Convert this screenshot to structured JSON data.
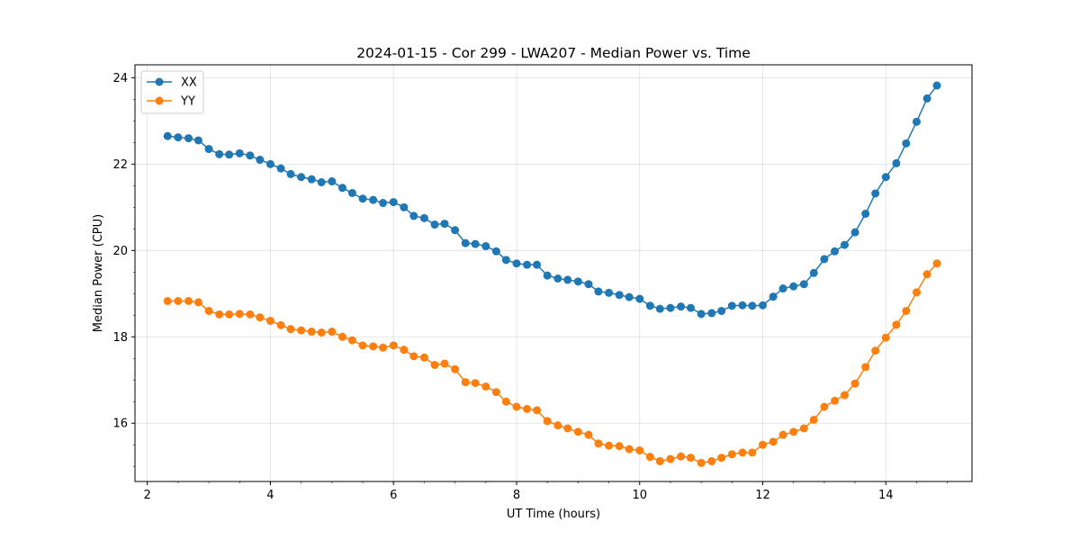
{
  "chart_data": {
    "type": "line",
    "title": "2024-01-15 - Cor 299 - LWA207 - Median Power vs. Time",
    "xlabel": "UT Time (hours)",
    "ylabel": "Median Power (CPU)",
    "xlim": [
      1.8,
      15.4
    ],
    "ylim": [
      14.65,
      24.3
    ],
    "xticks": [
      2,
      4,
      6,
      8,
      10,
      12,
      14
    ],
    "yticks": [
      16,
      18,
      20,
      22,
      24
    ],
    "grid": true,
    "legend_position": "top-left",
    "colors": {
      "XX": "#1f77b4",
      "YY": "#ff7f0e"
    },
    "series": [
      {
        "name": "XX",
        "x": [
          2.33,
          2.5,
          2.67,
          2.83,
          3.0,
          3.17,
          3.33,
          3.5,
          3.67,
          3.83,
          4.0,
          4.17,
          4.33,
          4.5,
          4.67,
          4.83,
          5.0,
          5.17,
          5.33,
          5.5,
          5.67,
          5.83,
          6.0,
          6.17,
          6.33,
          6.5,
          6.67,
          6.83,
          7.0,
          7.17,
          7.33,
          7.5,
          7.67,
          7.83,
          8.0,
          8.17,
          8.33,
          8.5,
          8.67,
          8.83,
          9.0,
          9.17,
          9.33,
          9.5,
          9.67,
          9.83,
          10.0,
          10.17,
          10.33,
          10.5,
          10.67,
          10.83,
          11.0,
          11.17,
          11.33,
          11.5,
          11.67,
          11.83,
          12.0,
          12.17,
          12.33,
          12.5,
          12.67,
          12.83,
          13.0,
          13.17,
          13.33,
          13.5,
          13.67,
          13.83,
          14.0,
          14.17,
          14.33,
          14.5,
          14.67,
          14.83
        ],
        "values": [
          22.65,
          22.62,
          22.6,
          22.55,
          22.35,
          22.23,
          22.22,
          22.25,
          22.2,
          22.1,
          22.0,
          21.9,
          21.77,
          21.7,
          21.65,
          21.58,
          21.6,
          21.45,
          21.33,
          21.2,
          21.17,
          21.1,
          21.12,
          21.0,
          20.8,
          20.75,
          20.6,
          20.62,
          20.47,
          20.17,
          20.15,
          20.1,
          19.98,
          19.78,
          19.7,
          19.67,
          19.67,
          19.42,
          19.35,
          19.32,
          19.28,
          19.22,
          19.05,
          19.02,
          18.97,
          18.92,
          18.88,
          18.72,
          18.65,
          18.67,
          18.7,
          18.67,
          18.53,
          18.55,
          18.6,
          18.72,
          18.73,
          18.72,
          18.73,
          18.93,
          19.12,
          19.17,
          19.22,
          19.48,
          19.8,
          19.98,
          20.13,
          20.42,
          20.85,
          21.32,
          21.7,
          22.02,
          22.48,
          22.98,
          23.52,
          23.82
        ]
      },
      {
        "name": "YY",
        "x": [
          2.33,
          2.5,
          2.67,
          2.83,
          3.0,
          3.17,
          3.33,
          3.5,
          3.67,
          3.83,
          4.0,
          4.17,
          4.33,
          4.5,
          4.67,
          4.83,
          5.0,
          5.17,
          5.33,
          5.5,
          5.67,
          5.83,
          6.0,
          6.17,
          6.33,
          6.5,
          6.67,
          6.83,
          7.0,
          7.17,
          7.33,
          7.5,
          7.67,
          7.83,
          8.0,
          8.17,
          8.33,
          8.5,
          8.67,
          8.83,
          9.0,
          9.17,
          9.33,
          9.5,
          9.67,
          9.83,
          10.0,
          10.17,
          10.33,
          10.5,
          10.67,
          10.83,
          11.0,
          11.17,
          11.33,
          11.5,
          11.67,
          11.83,
          12.0,
          12.17,
          12.33,
          12.5,
          12.67,
          12.83,
          13.0,
          13.17,
          13.33,
          13.5,
          13.67,
          13.83,
          14.0,
          14.17,
          14.33,
          14.5,
          14.67,
          14.83
        ],
        "values": [
          18.83,
          18.83,
          18.83,
          18.8,
          18.6,
          18.52,
          18.52,
          18.53,
          18.52,
          18.45,
          18.37,
          18.27,
          18.18,
          18.15,
          18.12,
          18.1,
          18.12,
          18.0,
          17.92,
          17.8,
          17.78,
          17.75,
          17.8,
          17.7,
          17.55,
          17.52,
          17.35,
          17.38,
          17.25,
          16.95,
          16.93,
          16.85,
          16.72,
          16.5,
          16.38,
          16.33,
          16.3,
          16.05,
          15.95,
          15.88,
          15.8,
          15.73,
          15.53,
          15.48,
          15.47,
          15.4,
          15.37,
          15.22,
          15.12,
          15.17,
          15.23,
          15.2,
          15.08,
          15.12,
          15.2,
          15.28,
          15.32,
          15.32,
          15.5,
          15.57,
          15.73,
          15.8,
          15.88,
          16.08,
          16.38,
          16.52,
          16.65,
          16.92,
          17.3,
          17.68,
          17.98,
          18.28,
          18.6,
          19.03,
          19.45,
          19.7
        ]
      }
    ]
  }
}
